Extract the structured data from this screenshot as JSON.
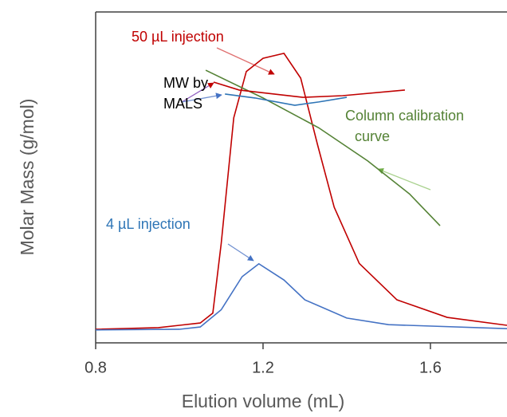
{
  "chart_data": {
    "type": "line",
    "ylabel": "Molar Mass (g/mol)",
    "xlabel": "Elution volume (mL)",
    "xlim": [
      0.8,
      1.783
    ],
    "ylim": [
      0,
      100
    ],
    "xticks": [
      {
        "value": 0.8,
        "label": "0.8"
      },
      {
        "value": 1.2,
        "label": "1.2"
      },
      {
        "value": 1.6,
        "label": "1.6"
      }
    ],
    "series": [
      {
        "color": "#c00000",
        "x": [
          0.8,
          0.95,
          1.0,
          1.05,
          1.08,
          1.1,
          1.13,
          1.16,
          1.2,
          1.25,
          1.29,
          1.33,
          1.37,
          1.43,
          1.52,
          1.64,
          1.783
        ],
        "values": [
          4.1,
          4.6,
          5.3,
          6.0,
          9,
          30,
          68,
          82,
          86,
          87.5,
          80,
          60,
          41,
          24,
          13,
          7.7,
          5.3
        ]
      },
      {
        "color": "#4472c4",
        "x": [
          0.8,
          1.0,
          1.05,
          1.1,
          1.15,
          1.19,
          1.25,
          1.3,
          1.4,
          1.5,
          1.783
        ],
        "values": [
          3.9,
          4.1,
          4.8,
          10,
          20,
          23.9,
          19,
          13,
          7.5,
          5.5,
          4.3
        ]
      },
      {
        "color": "#548235",
        "x": [
          1.063,
          1.2,
          1.333,
          1.45,
          1.55,
          1.623
        ],
        "values": [
          82.4,
          74,
          65,
          55,
          45,
          35.4
        ]
      },
      {
        "color": "#c00000",
        "x": [
          1.082,
          1.143,
          1.295,
          1.39,
          1.539
        ],
        "values": [
          78.8,
          76.4,
          74.2,
          74.7,
          76.4
        ]
      },
      {
        "color": "#2e75b6",
        "x": [
          1.109,
          1.181,
          1.276,
          1.333,
          1.4
        ],
        "values": [
          75.2,
          74,
          71.8,
          72.8,
          74.2
        ]
      }
    ],
    "annotations": [
      {
        "lines": [
          "50 µL injection"
        ],
        "color": "#c00000"
      },
      {
        "lines": [
          "MW by",
          "MALS"
        ],
        "color": "#000000"
      },
      {
        "lines": [
          "Column calibration",
          "curve"
        ],
        "color": "#548235"
      },
      {
        "lines": [
          "4 µL injection"
        ],
        "color": "#2e75b6"
      }
    ]
  }
}
